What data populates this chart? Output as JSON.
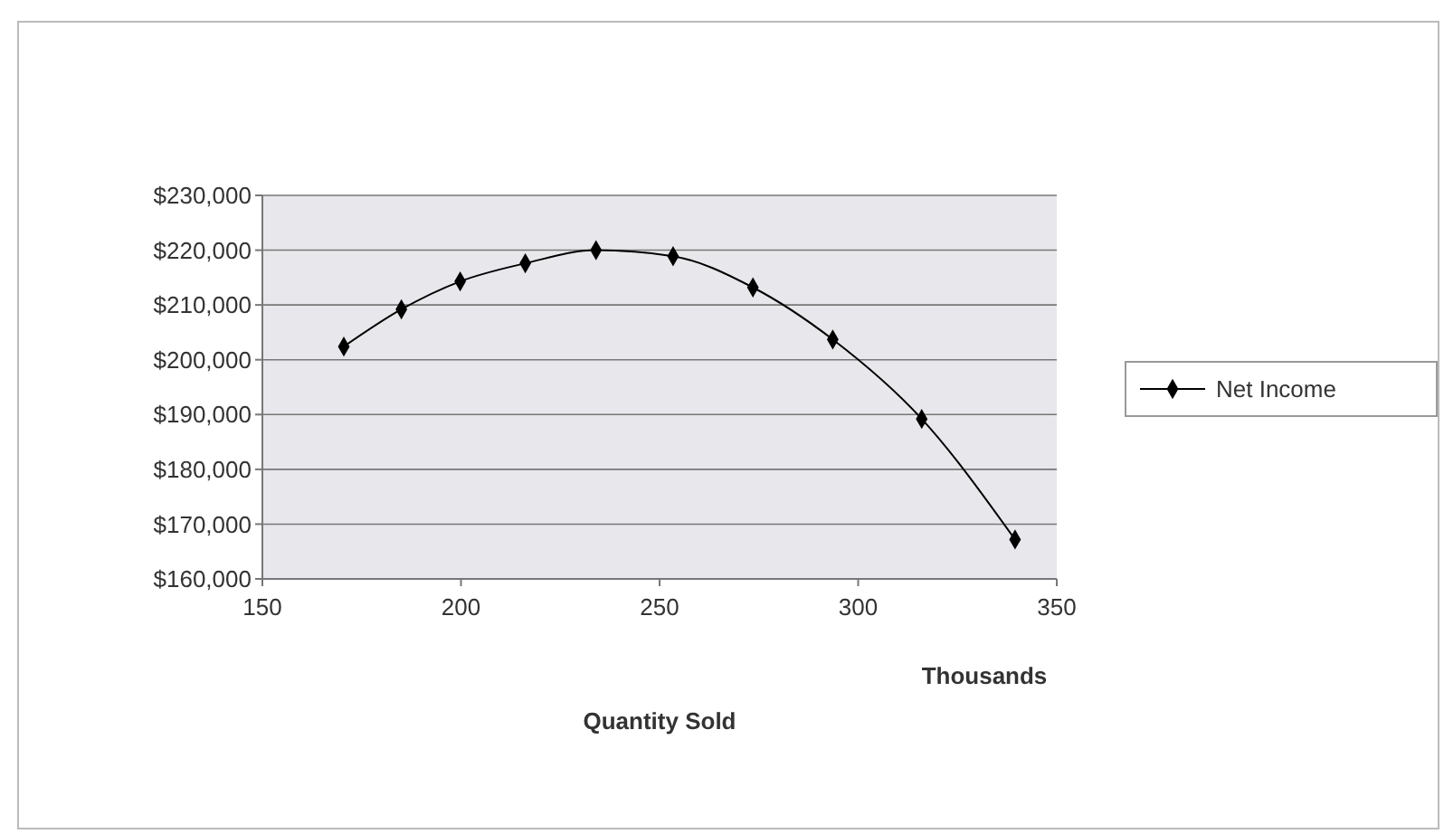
{
  "chart_data": {
    "type": "line",
    "xlabel": "Quantity Sold",
    "annotations": [
      "Thousands"
    ],
    "series": [
      {
        "name": "Net Income",
        "color": "#000000",
        "x": [
          170.5,
          185,
          199.8,
          216.2,
          234,
          253.4,
          273.5,
          293.6,
          316,
          339.5
        ],
        "values": [
          202400,
          209200,
          214300,
          217600,
          220000,
          218900,
          213200,
          203700,
          189200,
          167200
        ]
      }
    ],
    "xlim": [
      150,
      350
    ],
    "xticks": [
      150,
      200,
      250,
      300,
      350
    ],
    "ylim": [
      160000,
      230000
    ],
    "yticks": [
      {
        "value": 160000,
        "label": "$160,000"
      },
      {
        "value": 170000,
        "label": "$170,000"
      },
      {
        "value": 180000,
        "label": "$180,000"
      },
      {
        "value": 190000,
        "label": "$190,000"
      },
      {
        "value": 200000,
        "label": "$200,000"
      },
      {
        "value": 210000,
        "label": "$210,000"
      },
      {
        "value": 220000,
        "label": "$220,000"
      },
      {
        "value": 230000,
        "label": "$230,000"
      }
    ],
    "grid": "y",
    "legend": "right",
    "marker": "diamond",
    "line_style": "solid"
  }
}
